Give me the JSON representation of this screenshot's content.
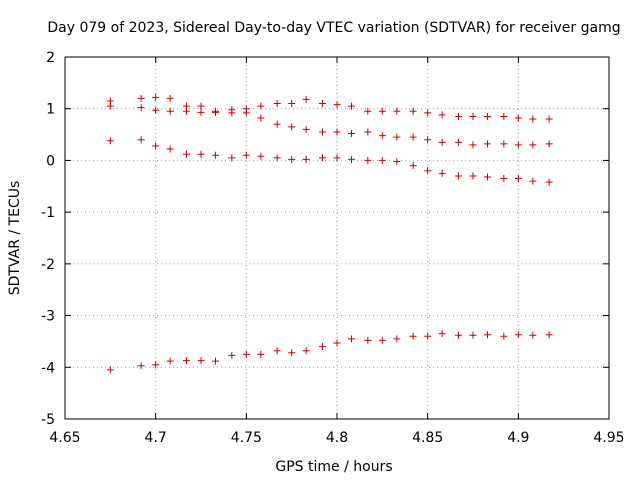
{
  "chart_data": {
    "type": "scatter",
    "title": "Day 079 of 2023, Sidereal Day-to-day VTEC variation (SDTVAR) for receiver gamg",
    "xlabel": "GPS time / hours",
    "ylabel": "SDTVAR / TECUs",
    "xlim": [
      4.65,
      4.95
    ],
    "ylim": [
      -5,
      2
    ],
    "xticks": [
      "4.65",
      "4.7",
      "4.75",
      "4.8",
      "4.85",
      "4.9",
      "4.95"
    ],
    "yticks": [
      "-5",
      "-4",
      "-3",
      "-2",
      "-1",
      "0",
      "1",
      "2"
    ],
    "grid": true,
    "marker": "+",
    "color": "#cc0000",
    "series": [
      {
        "name": "upper-a",
        "points": [
          [
            4.675,
            1.15
          ],
          [
            4.692,
            1.2
          ],
          [
            4.7,
            1.22
          ],
          [
            4.708,
            1.2
          ],
          [
            4.717,
            1.05
          ],
          [
            4.725,
            1.05
          ],
          [
            4.733,
            0.95
          ],
          [
            4.742,
            0.98
          ],
          [
            4.75,
            1.0
          ],
          [
            4.758,
            1.05
          ],
          [
            4.767,
            1.1
          ],
          [
            4.775,
            1.1
          ],
          [
            4.783,
            1.18
          ],
          [
            4.792,
            1.1
          ],
          [
            4.8,
            1.08
          ],
          [
            4.808,
            1.05
          ],
          [
            4.817,
            0.95
          ],
          [
            4.825,
            0.95
          ],
          [
            4.833,
            0.95
          ],
          [
            4.842,
            0.95
          ],
          [
            4.85,
            0.92
          ],
          [
            4.858,
            0.88
          ],
          [
            4.867,
            0.85
          ],
          [
            4.875,
            0.85
          ],
          [
            4.883,
            0.85
          ],
          [
            4.892,
            0.85
          ],
          [
            4.9,
            0.82
          ],
          [
            4.908,
            0.8
          ],
          [
            4.917,
            0.8
          ]
        ]
      },
      {
        "name": "upper-b",
        "points": [
          [
            4.675,
            1.05
          ],
          [
            4.692,
            1.02
          ],
          [
            4.7,
            0.97
          ],
          [
            4.708,
            0.95
          ],
          [
            4.717,
            0.95
          ],
          [
            4.725,
            0.93
          ],
          [
            4.733,
            0.93
          ],
          [
            4.742,
            0.92
          ],
          [
            4.75,
            0.92
          ],
          [
            4.758,
            0.82
          ],
          [
            4.767,
            0.7
          ],
          [
            4.775,
            0.65
          ],
          [
            4.783,
            0.6
          ],
          [
            4.792,
            0.55
          ],
          [
            4.8,
            0.55
          ],
          [
            4.808,
            0.52
          ],
          [
            4.817,
            0.55
          ],
          [
            4.825,
            0.48
          ],
          [
            4.833,
            0.45
          ],
          [
            4.842,
            0.45
          ],
          [
            4.85,
            0.4
          ],
          [
            4.858,
            0.35
          ],
          [
            4.867,
            0.35
          ],
          [
            4.875,
            0.3
          ],
          [
            4.883,
            0.32
          ],
          [
            4.892,
            0.32
          ],
          [
            4.9,
            0.3
          ],
          [
            4.908,
            0.3
          ],
          [
            4.917,
            0.32
          ]
        ]
      },
      {
        "name": "middle",
        "points": [
          [
            4.675,
            0.38
          ],
          [
            4.692,
            0.4
          ],
          [
            4.7,
            0.28
          ],
          [
            4.708,
            0.22
          ],
          [
            4.717,
            0.12
          ],
          [
            4.725,
            0.12
          ],
          [
            4.733,
            0.1
          ],
          [
            4.742,
            0.05
          ],
          [
            4.75,
            0.1
          ],
          [
            4.758,
            0.08
          ],
          [
            4.767,
            0.05
          ],
          [
            4.775,
            0.02
          ],
          [
            4.783,
            0.02
          ],
          [
            4.792,
            0.05
          ],
          [
            4.8,
            0.05
          ],
          [
            4.808,
            0.02
          ],
          [
            4.817,
            0.0
          ],
          [
            4.825,
            0.0
          ],
          [
            4.833,
            -0.02
          ],
          [
            4.842,
            -0.1
          ],
          [
            4.85,
            -0.2
          ],
          [
            4.858,
            -0.25
          ],
          [
            4.867,
            -0.3
          ],
          [
            4.875,
            -0.3
          ],
          [
            4.883,
            -0.32
          ],
          [
            4.892,
            -0.35
          ],
          [
            4.9,
            -0.35
          ],
          [
            4.908,
            -0.4
          ],
          [
            4.917,
            -0.42
          ]
        ]
      },
      {
        "name": "lower",
        "points": [
          [
            4.675,
            -4.05
          ],
          [
            4.692,
            -3.97
          ],
          [
            4.7,
            -3.95
          ],
          [
            4.708,
            -3.88
          ],
          [
            4.717,
            -3.87
          ],
          [
            4.725,
            -3.87
          ],
          [
            4.733,
            -3.88
          ],
          [
            4.742,
            -3.77
          ],
          [
            4.75,
            -3.75
          ],
          [
            4.758,
            -3.75
          ],
          [
            4.767,
            -3.68
          ],
          [
            4.775,
            -3.72
          ],
          [
            4.783,
            -3.68
          ],
          [
            4.792,
            -3.6
          ],
          [
            4.8,
            -3.53
          ],
          [
            4.808,
            -3.45
          ],
          [
            4.817,
            -3.48
          ],
          [
            4.825,
            -3.48
          ],
          [
            4.833,
            -3.45
          ],
          [
            4.842,
            -3.4
          ],
          [
            4.85,
            -3.4
          ],
          [
            4.858,
            -3.35
          ],
          [
            4.867,
            -3.38
          ],
          [
            4.875,
            -3.38
          ],
          [
            4.883,
            -3.37
          ],
          [
            4.892,
            -3.4
          ],
          [
            4.9,
            -3.37
          ],
          [
            4.908,
            -3.38
          ],
          [
            4.917,
            -3.37
          ]
        ]
      }
    ]
  }
}
